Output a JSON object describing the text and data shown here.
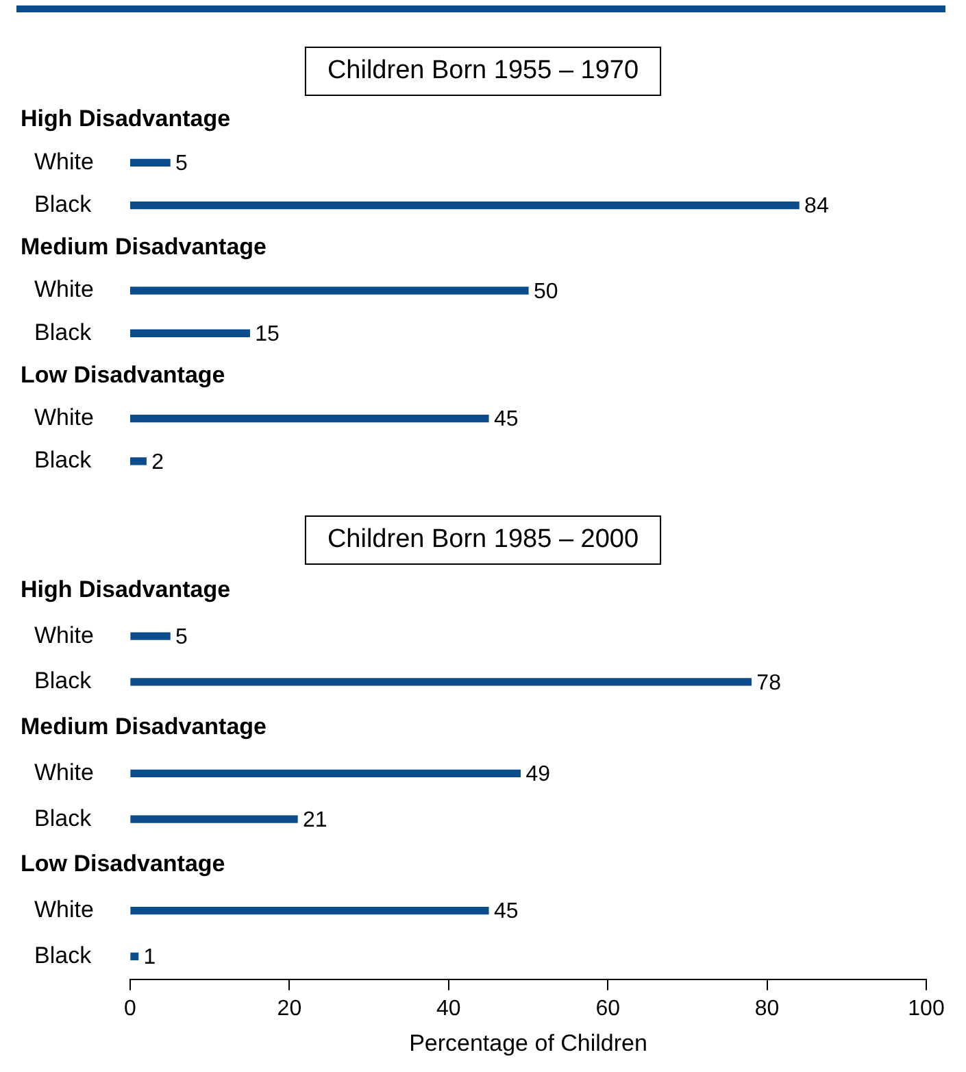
{
  "chart_data": [
    {
      "type": "bar",
      "orientation": "horizontal",
      "title": "Children Born 1955 – 1970",
      "categories": [
        "High Disadvantage",
        "White",
        "Black",
        "Medium Disadvantage",
        "White",
        "Black",
        "Low Disadvantage",
        "White",
        "Black"
      ],
      "values": [
        null,
        5,
        84,
        null,
        50,
        15,
        null,
        45,
        2
      ],
      "color": "#0a4c8c",
      "data_labels": true,
      "xlim": [
        0,
        100
      ],
      "xticks": [
        0,
        20,
        40,
        60,
        80,
        100
      ],
      "tick_labels": "y",
      "grid": false,
      "legend": false
    },
    {
      "type": "bar",
      "orientation": "horizontal",
      "title": "Children Born 1985 – 2000",
      "categories": [
        "High Disadvantage",
        "White",
        "Black",
        "Medium Disadvantage",
        "White",
        "Black",
        "Low Disadvantage",
        "White",
        "Black"
      ],
      "values": [
        null,
        5,
        78,
        null,
        49,
        21,
        null,
        45,
        1
      ],
      "color": "#0a4c8c",
      "data_labels": true,
      "xlim": [
        0,
        100
      ],
      "xticks": [
        0,
        20,
        40,
        60,
        80,
        100
      ],
      "xlabel": "Percentage of Children",
      "grid": false,
      "legend": false
    }
  ]
}
